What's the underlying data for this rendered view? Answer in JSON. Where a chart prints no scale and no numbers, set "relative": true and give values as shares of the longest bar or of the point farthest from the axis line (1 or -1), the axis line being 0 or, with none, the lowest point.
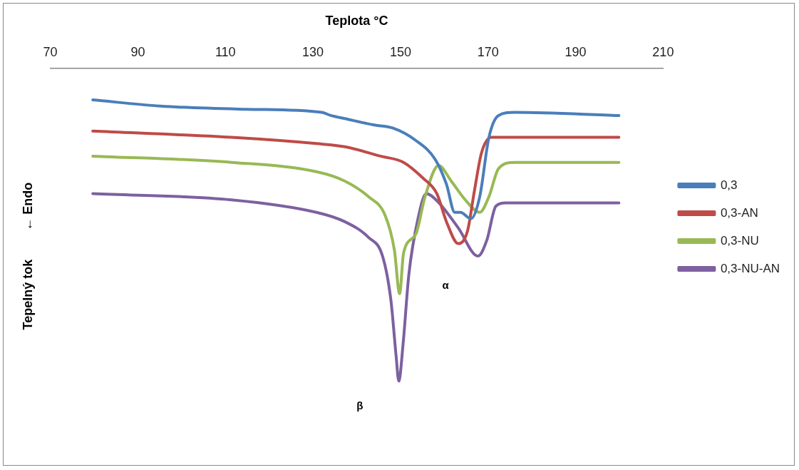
{
  "chart_data": {
    "type": "line",
    "relative": true,
    "xlabel": "Teplota °C",
    "ylabel": "Tepelný tok        ← Endo",
    "xlim": [
      70,
      210
    ],
    "xticks": [
      70,
      90,
      110,
      130,
      150,
      170,
      190,
      210
    ],
    "grid": false,
    "legend": "right",
    "marker": "none",
    "line_style": "solid",
    "annotations": [
      "α",
      "β"
    ],
    "series": [
      {
        "name": "0,3",
        "color": "#4a7ebb",
        "x": [
          79.7,
          95.2,
          114.7,
          132.0,
          134.1,
          137.3,
          143.8,
          148.2,
          153.5,
          157.9,
          160.5,
          162.4,
          163.7,
          166.1,
          168.1,
          170.2,
          172.4,
          176.1,
          199.9
        ],
        "values": [
          -0.1,
          -0.12,
          -0.13,
          -0.14,
          -0.15,
          -0.16,
          -0.18,
          -0.19,
          -0.23,
          -0.29,
          -0.37,
          -0.46,
          -0.46,
          -0.48,
          -0.41,
          -0.22,
          -0.15,
          -0.14,
          -0.15
        ]
      },
      {
        "name": "0,3-AN",
        "color": "#be4b48",
        "x": [
          79.7,
          111.4,
          130.8,
          137.3,
          145.4,
          150.7,
          155.1,
          158.3,
          160.5,
          163.2,
          165.3,
          166.9,
          168.5,
          170.8,
          176.1,
          199.9
        ],
        "values": [
          -0.2,
          -0.22,
          -0.24,
          -0.25,
          -0.28,
          -0.3,
          -0.35,
          -0.4,
          -0.49,
          -0.56,
          -0.52,
          -0.39,
          -0.27,
          -0.22,
          -0.22,
          -0.22
        ]
      },
      {
        "name": "0,3-NU",
        "color": "#98b954",
        "x": [
          79.7,
          111.4,
          130.8,
          137.3,
          142.7,
          146.5,
          148.6,
          149.8,
          150.7,
          153.5,
          155.6,
          158.7,
          161.6,
          164.8,
          168.1,
          170.2,
          172.4,
          176.1,
          199.9
        ],
        "values": [
          -0.28,
          -0.3,
          -0.33,
          -0.36,
          -0.41,
          -0.47,
          -0.58,
          -0.72,
          -0.59,
          -0.53,
          -0.41,
          -0.31,
          -0.36,
          -0.42,
          -0.46,
          -0.41,
          -0.32,
          -0.3,
          -0.3
        ]
      },
      {
        "name": "0,3-NU-AN",
        "color": "#7d60a0",
        "x": [
          79.7,
          111.4,
          130.8,
          137.3,
          142.7,
          145.9,
          147.8,
          149.0,
          149.6,
          150.6,
          151.9,
          154.0,
          155.9,
          158.8,
          163.2,
          167.7,
          169.7,
          171.8,
          174.0,
          199.9
        ],
        "values": [
          -0.4,
          -0.42,
          -0.46,
          -0.49,
          -0.54,
          -0.6,
          -0.74,
          -0.92,
          -1.0,
          -0.88,
          -0.66,
          -0.48,
          -0.4,
          -0.43,
          -0.51,
          -0.6,
          -0.55,
          -0.44,
          -0.43,
          -0.43
        ]
      }
    ]
  }
}
